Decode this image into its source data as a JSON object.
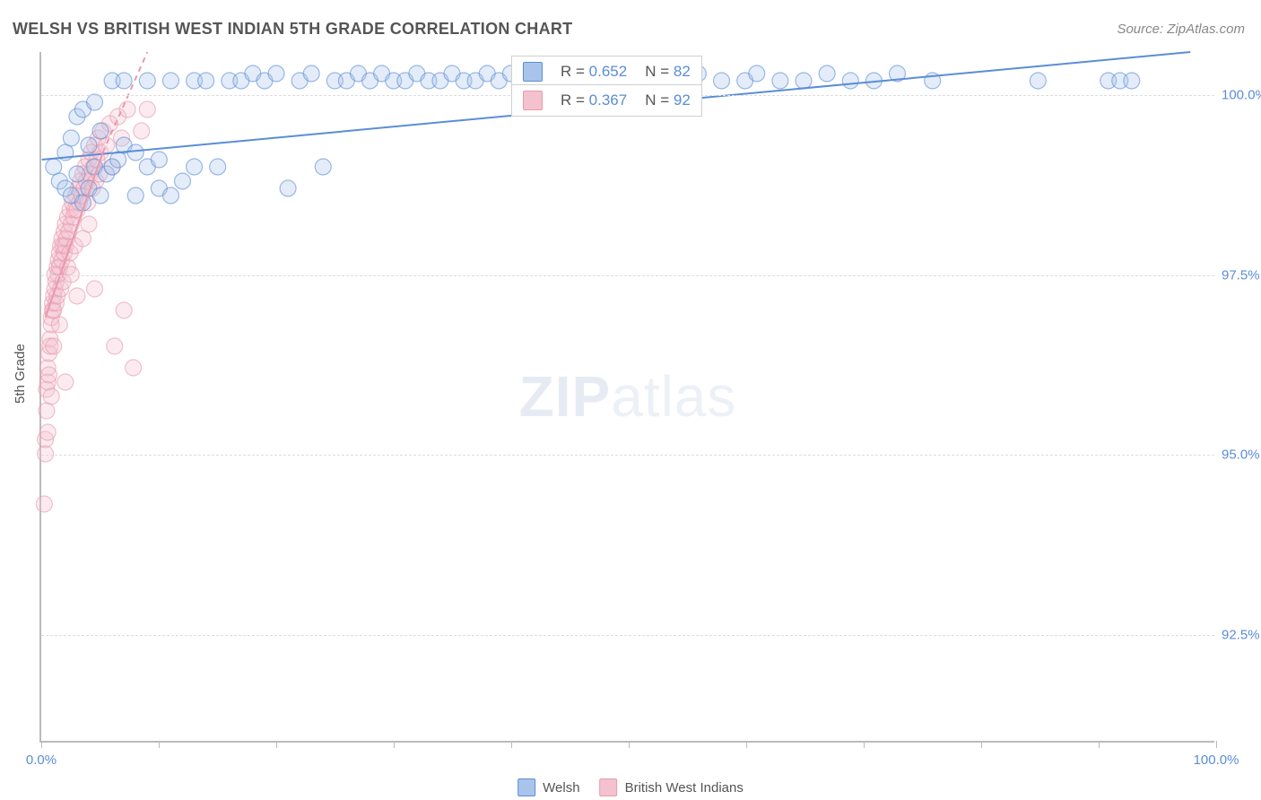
{
  "title": "WELSH VS BRITISH WEST INDIAN 5TH GRADE CORRELATION CHART",
  "source": "Source: ZipAtlas.com",
  "ylabel": "5th Grade",
  "watermark": {
    "bold": "ZIP",
    "light": "atlas"
  },
  "chart": {
    "type": "scatter",
    "background_color": "#ffffff",
    "grid_color": "#dddddd",
    "axis_color": "#bbbbbb",
    "tick_label_color": "#5b8dd6",
    "label_fontsize": 15,
    "title_fontsize": 18,
    "xlim": [
      0,
      100
    ],
    "ylim": [
      91.0,
      100.6
    ],
    "xticks": [
      0,
      10,
      20,
      30,
      40,
      50,
      60,
      70,
      80,
      90,
      100
    ],
    "xtick_labels": {
      "0": "0.0%",
      "100": "100.0%"
    },
    "yticks": [
      92.5,
      95.0,
      97.5,
      100.0
    ],
    "ytick_labels": [
      "92.5%",
      "95.0%",
      "97.5%",
      "100.0%"
    ],
    "marker_radius": 9,
    "marker_opacity": 0.32,
    "marker_stroke_opacity": 0.6,
    "line_width": 2,
    "series": [
      {
        "key": "welsh",
        "label": "Welsh",
        "color": "#5b8dd6",
        "fill": "#a9c4ea",
        "R": "0.652",
        "N": "82",
        "trend": {
          "x1": 0,
          "y1": 99.1,
          "x2": 98,
          "y2": 100.6,
          "dashed": false
        },
        "points": [
          [
            1,
            99.0
          ],
          [
            1.5,
            98.8
          ],
          [
            2,
            99.2
          ],
          [
            2,
            98.7
          ],
          [
            2.5,
            99.4
          ],
          [
            2.5,
            98.6
          ],
          [
            3,
            98.9
          ],
          [
            3,
            99.7
          ],
          [
            3.5,
            98.5
          ],
          [
            3.5,
            99.8
          ],
          [
            4,
            98.7
          ],
          [
            4,
            99.3
          ],
          [
            4.5,
            99.0
          ],
          [
            4.5,
            99.9
          ],
          [
            5,
            98.6
          ],
          [
            5,
            99.5
          ],
          [
            5.5,
            98.9
          ],
          [
            6,
            99.0
          ],
          [
            6,
            100.2
          ],
          [
            6.5,
            99.1
          ],
          [
            7,
            99.3
          ],
          [
            7,
            100.2
          ],
          [
            8,
            99.2
          ],
          [
            8,
            98.6
          ],
          [
            9,
            99.0
          ],
          [
            9,
            100.2
          ],
          [
            10,
            99.1
          ],
          [
            10,
            98.7
          ],
          [
            11,
            98.6
          ],
          [
            11,
            100.2
          ],
          [
            12,
            98.8
          ],
          [
            13,
            99.0
          ],
          [
            13,
            100.2
          ],
          [
            14,
            100.2
          ],
          [
            15,
            99.0
          ],
          [
            16,
            100.2
          ],
          [
            17,
            100.2
          ],
          [
            18,
            100.3
          ],
          [
            19,
            100.2
          ],
          [
            20,
            100.3
          ],
          [
            21,
            98.7
          ],
          [
            22,
            100.2
          ],
          [
            23,
            100.3
          ],
          [
            24,
            99.0
          ],
          [
            25,
            100.2
          ],
          [
            26,
            100.2
          ],
          [
            27,
            100.3
          ],
          [
            28,
            100.2
          ],
          [
            29,
            100.3
          ],
          [
            30,
            100.2
          ],
          [
            31,
            100.2
          ],
          [
            32,
            100.3
          ],
          [
            33,
            100.2
          ],
          [
            34,
            100.2
          ],
          [
            35,
            100.3
          ],
          [
            36,
            100.2
          ],
          [
            37,
            100.2
          ],
          [
            38,
            100.3
          ],
          [
            39,
            100.2
          ],
          [
            40,
            100.3
          ],
          [
            42,
            100.2
          ],
          [
            44,
            100.2
          ],
          [
            46,
            100.3
          ],
          [
            48,
            100.2
          ],
          [
            50,
            100.2
          ],
          [
            52,
            100.3
          ],
          [
            54,
            100.2
          ],
          [
            56,
            100.3
          ],
          [
            58,
            100.2
          ],
          [
            60,
            100.2
          ],
          [
            61,
            100.3
          ],
          [
            63,
            100.2
          ],
          [
            65,
            100.2
          ],
          [
            67,
            100.3
          ],
          [
            69,
            100.2
          ],
          [
            71,
            100.2
          ],
          [
            73,
            100.3
          ],
          [
            76,
            100.2
          ],
          [
            85,
            100.2
          ],
          [
            91,
            100.2
          ],
          [
            92,
            100.2
          ],
          [
            93,
            100.2
          ]
        ]
      },
      {
        "key": "bwi",
        "label": "British West Indians",
        "color": "#e89aad",
        "fill": "#f4c1cf",
        "R": "0.367",
        "N": "92",
        "trend": {
          "x1": 0.3,
          "y1": 96.9,
          "x2": 5.2,
          "y2": 99.2,
          "dashed": false
        },
        "trend_ext": {
          "x1": 5.2,
          "y1": 99.2,
          "x2": 9.0,
          "y2": 100.6,
          "dashed": true
        },
        "points": [
          [
            0.2,
            94.3
          ],
          [
            0.3,
            95.0
          ],
          [
            0.3,
            95.2
          ],
          [
            0.4,
            95.6
          ],
          [
            0.4,
            95.9
          ],
          [
            0.5,
            96.0
          ],
          [
            0.5,
            96.2
          ],
          [
            0.5,
            95.3
          ],
          [
            0.6,
            96.4
          ],
          [
            0.6,
            96.1
          ],
          [
            0.7,
            96.6
          ],
          [
            0.7,
            96.5
          ],
          [
            0.8,
            96.8
          ],
          [
            0.8,
            96.9
          ],
          [
            0.8,
            95.8
          ],
          [
            0.9,
            97.0
          ],
          [
            0.9,
            97.1
          ],
          [
            1.0,
            97.2
          ],
          [
            1.0,
            97.0
          ],
          [
            1.0,
            96.5
          ],
          [
            1.1,
            97.3
          ],
          [
            1.1,
            97.5
          ],
          [
            1.2,
            97.1
          ],
          [
            1.2,
            97.4
          ],
          [
            1.3,
            97.6
          ],
          [
            1.3,
            97.2
          ],
          [
            1.4,
            97.7
          ],
          [
            1.4,
            97.5
          ],
          [
            1.5,
            97.8
          ],
          [
            1.5,
            97.6
          ],
          [
            1.5,
            96.8
          ],
          [
            1.6,
            97.9
          ],
          [
            1.6,
            97.3
          ],
          [
            1.7,
            98.0
          ],
          [
            1.7,
            97.7
          ],
          [
            1.8,
            97.9
          ],
          [
            1.8,
            97.4
          ],
          [
            1.9,
            98.1
          ],
          [
            1.9,
            97.8
          ],
          [
            2.0,
            98.2
          ],
          [
            2.0,
            97.9
          ],
          [
            2.0,
            96.0
          ],
          [
            2.1,
            98.0
          ],
          [
            2.2,
            98.3
          ],
          [
            2.2,
            97.6
          ],
          [
            2.3,
            98.1
          ],
          [
            2.4,
            98.4
          ],
          [
            2.4,
            97.8
          ],
          [
            2.5,
            98.2
          ],
          [
            2.5,
            97.5
          ],
          [
            2.6,
            98.5
          ],
          [
            2.7,
            98.3
          ],
          [
            2.8,
            98.4
          ],
          [
            2.8,
            97.9
          ],
          [
            2.9,
            98.6
          ],
          [
            3.0,
            98.4
          ],
          [
            3.0,
            97.2
          ],
          [
            3.1,
            98.7
          ],
          [
            3.2,
            98.5
          ],
          [
            3.3,
            98.8
          ],
          [
            3.4,
            98.6
          ],
          [
            3.5,
            98.9
          ],
          [
            3.5,
            98.0
          ],
          [
            3.6,
            98.7
          ],
          [
            3.7,
            99.0
          ],
          [
            3.8,
            98.8
          ],
          [
            3.9,
            98.5
          ],
          [
            4.0,
            99.1
          ],
          [
            4.0,
            98.2
          ],
          [
            4.1,
            98.9
          ],
          [
            4.2,
            99.2
          ],
          [
            4.3,
            98.7
          ],
          [
            4.4,
            99.0
          ],
          [
            4.5,
            99.3
          ],
          [
            4.5,
            97.3
          ],
          [
            4.6,
            98.8
          ],
          [
            4.7,
            99.1
          ],
          [
            4.8,
            99.4
          ],
          [
            4.9,
            98.9
          ],
          [
            5.0,
            99.2
          ],
          [
            5.2,
            99.5
          ],
          [
            5.5,
            99.3
          ],
          [
            5.8,
            99.6
          ],
          [
            6.0,
            99.0
          ],
          [
            6.2,
            96.5
          ],
          [
            6.5,
            99.7
          ],
          [
            6.8,
            99.4
          ],
          [
            7.0,
            97.0
          ],
          [
            7.3,
            99.8
          ],
          [
            7.8,
            96.2
          ],
          [
            8.5,
            99.5
          ],
          [
            9.0,
            99.8
          ]
        ]
      }
    ]
  },
  "correlation_panel": {
    "rows": [
      {
        "series_key": "welsh",
        "R_label": "R = ",
        "N_label": "N = "
      },
      {
        "series_key": "bwi",
        "R_label": "R = ",
        "N_label": "N = "
      }
    ]
  },
  "legend": {
    "items": [
      {
        "series_key": "welsh"
      },
      {
        "series_key": "bwi"
      }
    ]
  }
}
